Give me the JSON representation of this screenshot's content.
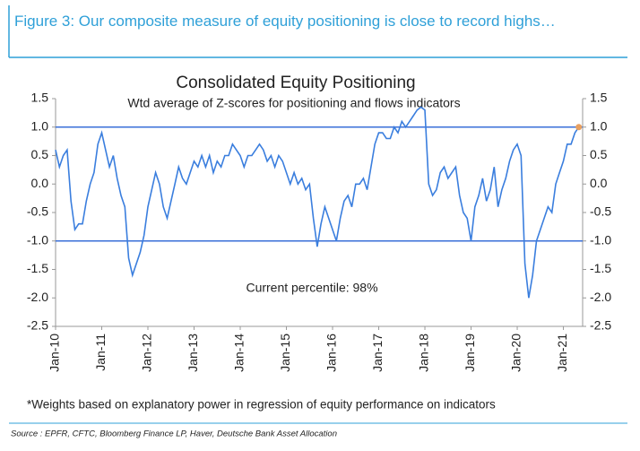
{
  "header": {
    "title": "Figure 3: Our composite measure of equity positioning is close to record highs…"
  },
  "chart_data": {
    "type": "line",
    "title": "Consolidated Equity Positioning",
    "subtitle": "Wtd average of Z-scores for positioning and flows indicators",
    "annotation": "Current percentile: 98%",
    "x": [
      "2010-01",
      "2010-02",
      "2010-03",
      "2010-04",
      "2010-05",
      "2010-06",
      "2010-07",
      "2010-08",
      "2010-09",
      "2010-10",
      "2010-11",
      "2010-12",
      "2011-01",
      "2011-02",
      "2011-03",
      "2011-04",
      "2011-05",
      "2011-06",
      "2011-07",
      "2011-08",
      "2011-09",
      "2011-10",
      "2011-11",
      "2011-12",
      "2012-01",
      "2012-02",
      "2012-03",
      "2012-04",
      "2012-05",
      "2012-06",
      "2012-07",
      "2012-08",
      "2012-09",
      "2012-10",
      "2012-11",
      "2012-12",
      "2013-01",
      "2013-02",
      "2013-03",
      "2013-04",
      "2013-05",
      "2013-06",
      "2013-07",
      "2013-08",
      "2013-09",
      "2013-10",
      "2013-11",
      "2013-12",
      "2014-01",
      "2014-02",
      "2014-03",
      "2014-04",
      "2014-05",
      "2014-06",
      "2014-07",
      "2014-08",
      "2014-09",
      "2014-10",
      "2014-11",
      "2014-12",
      "2015-01",
      "2015-02",
      "2015-03",
      "2015-04",
      "2015-05",
      "2015-06",
      "2015-07",
      "2015-08",
      "2015-09",
      "2015-10",
      "2015-11",
      "2015-12",
      "2016-01",
      "2016-02",
      "2016-03",
      "2016-04",
      "2016-05",
      "2016-06",
      "2016-07",
      "2016-08",
      "2016-09",
      "2016-10",
      "2016-11",
      "2016-12",
      "2017-01",
      "2017-02",
      "2017-03",
      "2017-04",
      "2017-05",
      "2017-06",
      "2017-07",
      "2017-08",
      "2017-09",
      "2017-10",
      "2017-11",
      "2017-12",
      "2018-01",
      "2018-02",
      "2018-03",
      "2018-04",
      "2018-05",
      "2018-06",
      "2018-07",
      "2018-08",
      "2018-09",
      "2018-10",
      "2018-11",
      "2018-12",
      "2019-01",
      "2019-02",
      "2019-03",
      "2019-04",
      "2019-05",
      "2019-06",
      "2019-07",
      "2019-08",
      "2019-09",
      "2019-10",
      "2019-11",
      "2019-12",
      "2020-01",
      "2020-02",
      "2020-03",
      "2020-04",
      "2020-05",
      "2020-06",
      "2020-07",
      "2020-08",
      "2020-09",
      "2020-10",
      "2020-11",
      "2020-12",
      "2021-01",
      "2021-02",
      "2021-03",
      "2021-04",
      "2021-05"
    ],
    "series": [
      {
        "color": "#3a7ede",
        "values": [
          0.6,
          0.3,
          0.5,
          0.6,
          -0.3,
          -0.8,
          -0.7,
          -0.7,
          -0.3,
          0.0,
          0.2,
          0.7,
          0.9,
          0.6,
          0.3,
          0.5,
          0.1,
          -0.2,
          -0.4,
          -1.3,
          -1.6,
          -1.4,
          -1.2,
          -0.9,
          -0.4,
          -0.1,
          0.2,
          0.0,
          -0.4,
          -0.6,
          -0.3,
          0.0,
          0.3,
          0.1,
          0.0,
          0.2,
          0.4,
          0.3,
          0.5,
          0.3,
          0.5,
          0.2,
          0.4,
          0.3,
          0.5,
          0.5,
          0.7,
          0.6,
          0.5,
          0.3,
          0.5,
          0.5,
          0.6,
          0.7,
          0.6,
          0.4,
          0.5,
          0.3,
          0.5,
          0.4,
          0.2,
          0.0,
          0.2,
          0.0,
          0.1,
          -0.1,
          0.0,
          -0.6,
          -1.1,
          -0.7,
          -0.4,
          -0.6,
          -0.8,
          -1.0,
          -0.6,
          -0.3,
          -0.2,
          -0.4,
          0.0,
          0.0,
          0.1,
          -0.1,
          0.3,
          0.7,
          0.9,
          0.9,
          0.8,
          0.8,
          1.0,
          0.9,
          1.1,
          1.0,
          1.1,
          1.2,
          1.3,
          1.35,
          1.3,
          0.0,
          -0.2,
          -0.1,
          0.2,
          0.3,
          0.1,
          0.2,
          0.3,
          -0.2,
          -0.5,
          -0.6,
          -1.0,
          -0.4,
          -0.2,
          0.1,
          -0.3,
          -0.1,
          0.3,
          -0.4,
          -0.1,
          0.1,
          0.4,
          0.6,
          0.7,
          0.5,
          -1.4,
          -2.0,
          -1.6,
          -1.0,
          -0.8,
          -0.6,
          -0.4,
          -0.5,
          0.0,
          0.2,
          0.4,
          0.7,
          0.7,
          0.9,
          1.0
        ]
      }
    ],
    "last_point_color": "#e8a060",
    "hlines": [
      1,
      -1
    ],
    "hline_color": "#3a6fd8",
    "xlim": [
      "2010-01",
      "2021-06"
    ],
    "xticks": [
      {
        "value": "2010-01",
        "label": "Jan-10"
      },
      {
        "value": "2011-01",
        "label": "Jan-11"
      },
      {
        "value": "2012-01",
        "label": "Jan-12"
      },
      {
        "value": "2013-01",
        "label": "Jan-13"
      },
      {
        "value": "2014-01",
        "label": "Jan-14"
      },
      {
        "value": "2015-01",
        "label": "Jan-15"
      },
      {
        "value": "2016-01",
        "label": "Jan-16"
      },
      {
        "value": "2017-01",
        "label": "Jan-17"
      },
      {
        "value": "2018-01",
        "label": "Jan-18"
      },
      {
        "value": "2019-01",
        "label": "Jan-19"
      },
      {
        "value": "2020-01",
        "label": "Jan-20"
      },
      {
        "value": "2021-01",
        "label": "Jan-21"
      }
    ],
    "ylim": [
      -2.5,
      1.5
    ],
    "yticks": [
      1.5,
      {
        "value": 1,
        "label": "1.0"
      },
      0.5,
      {
        "value": 0,
        "label": "0.0"
      },
      -0.5,
      {
        "value": -1,
        "label": "-1.0"
      },
      -1.5,
      {
        "value": -2,
        "label": "-2.0"
      },
      -2.5
    ],
    "y2lim": [
      -2.5,
      1.5
    ],
    "y2ticks": [
      1.5,
      {
        "value": 1,
        "label": "1.0"
      },
      0.5,
      {
        "value": 0,
        "label": "0.0"
      },
      -0.5,
      {
        "value": -1,
        "label": "-1.0"
      },
      -1.5,
      {
        "value": -2,
        "label": "-2.0"
      },
      -2.5
    ],
    "footnote": "*Weights based on explanatory power in regression of equity performance on indicators"
  },
  "source": "Source : EPFR, CFTC, Bloomberg Finance LP, Haver, Deutsche Bank Asset Allocation"
}
